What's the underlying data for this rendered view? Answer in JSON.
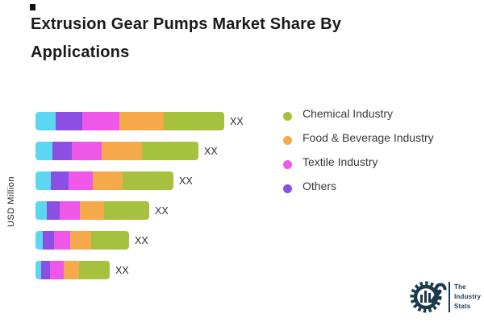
{
  "title": {
    "text": "Extrusion Gear Pumps Market Share By Applications"
  },
  "chart_data": {
    "type": "bar",
    "orientation": "horizontal",
    "stacked": true,
    "title": "Extrusion Gear Pumps Market Share By Applications",
    "ylabel": "USD Million",
    "xlabel": "",
    "categories": [
      "",
      "",
      "",
      "",
      "",
      ""
    ],
    "value_labels": [
      "XX",
      "XX",
      "XX",
      "XX",
      "XX",
      "XX"
    ],
    "series": [
      {
        "name": "",
        "color": "#5bd7f2",
        "values": [
          25,
          21,
          19,
          14,
          9,
          7
        ]
      },
      {
        "name": "Others",
        "color": "#8b50e3",
        "values": [
          33,
          24,
          22,
          16,
          14,
          11
        ]
      },
      {
        "name": "Textile Industry",
        "color": "#ee57e7",
        "values": [
          46,
          37,
          30,
          25,
          20,
          17
        ]
      },
      {
        "name": "Food & Beverage Industry",
        "color": "#f5a94b",
        "values": [
          55,
          50,
          37,
          30,
          26,
          19
        ]
      },
      {
        "name": "Chemical Industry",
        "color": "#a6c13e",
        "values": [
          75,
          70,
          63,
          56,
          47,
          38
        ]
      }
    ],
    "legend_position": "right",
    "grid": false,
    "axis_lines": false
  },
  "legend": {
    "items": [
      {
        "label": "Chemical Industry",
        "color": "#a6c13e"
      },
      {
        "label": "Food & Beverage Industry",
        "color": "#f5a94b"
      },
      {
        "label": "Textile Industry",
        "color": "#ee57e7"
      },
      {
        "label": "Others",
        "color": "#8b50e3"
      }
    ]
  },
  "logo": {
    "line1": "The",
    "line2": "Industry",
    "line3": "Stats",
    "color": "#1c3b4e"
  }
}
